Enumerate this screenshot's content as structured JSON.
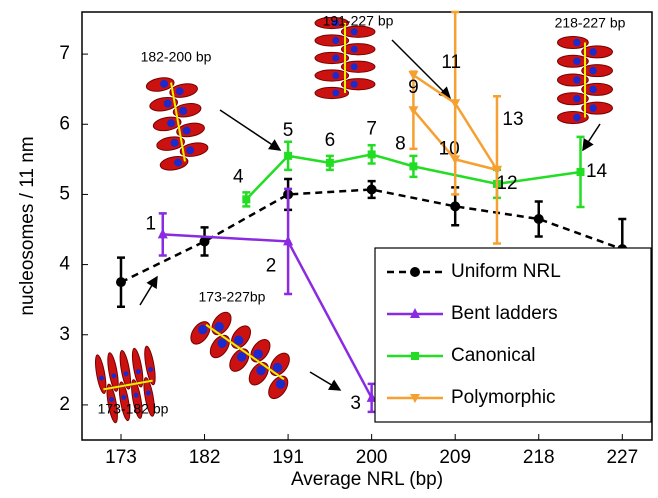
{
  "chart_data": {
    "type": "line",
    "x_label": "Average NRL (bp)",
    "y_label": "nucleosomes / 11 nm",
    "xlim": [
      168.8,
      230.2
    ],
    "ylim": [
      1.5,
      7.6
    ],
    "xticks": [
      173,
      182,
      191,
      200,
      209,
      218,
      227
    ],
    "yticks": [
      2,
      3,
      4,
      5,
      6,
      7
    ],
    "legend": "lower right",
    "series": [
      {
        "name": "Uniform NRL",
        "color": "#000000",
        "dash": true,
        "marker": "circle",
        "x": [
          173,
          182,
          191,
          200,
          209,
          218,
          227
        ],
        "values": [
          3.75,
          4.33,
          5.0,
          5.07,
          4.83,
          4.65,
          4.22
        ],
        "errors": [
          0.35,
          0.2,
          0.22,
          0.12,
          0.27,
          0.25,
          0.43
        ],
        "point_labels": [
          null,
          null,
          null,
          null,
          null,
          null,
          null
        ]
      },
      {
        "name": "Bent ladders",
        "color": "#8a2be2",
        "marker": "triangle",
        "x": [
          177.5,
          191,
          200
        ],
        "values": [
          4.43,
          4.33,
          2.1
        ],
        "errors": [
          0.3,
          0.75,
          0.2
        ],
        "point_labels": [
          "1",
          "2",
          "3"
        ]
      },
      {
        "name": "Canonical",
        "color": "#22dd22",
        "marker": "square",
        "x": [
          186.5,
          191,
          195.5,
          200,
          204.5,
          213.5,
          222.5
        ],
        "values": [
          4.93,
          5.55,
          5.45,
          5.57,
          5.4,
          5.15,
          5.32
        ],
        "errors": [
          0.1,
          0.2,
          0.1,
          0.13,
          0.15,
          0.2,
          0.5
        ],
        "point_labels": [
          "4",
          "5",
          "6",
          "7",
          "8",
          "12",
          "14"
        ]
      },
      {
        "name": "Polymorphic",
        "color": "#f5a030",
        "marker": "vee",
        "x": [
          204.5,
          209,
          213.5,
          null,
          204.5,
          209,
          213.5
        ],
        "values": [
          6.2,
          5.5,
          5.35,
          null,
          6.7,
          6.3,
          5.35
        ],
        "errors": [
          0.55,
          null,
          null,
          null,
          null,
          1.3,
          1.05
        ],
        "point_labels": [
          "9",
          "10",
          null,
          null,
          null,
          "11",
          "13"
        ]
      }
    ],
    "annotations": [
      "182-200 bp",
      "191-227 bp",
      "218-227 bp",
      "173-182 bp",
      "173-227bp"
    ]
  }
}
